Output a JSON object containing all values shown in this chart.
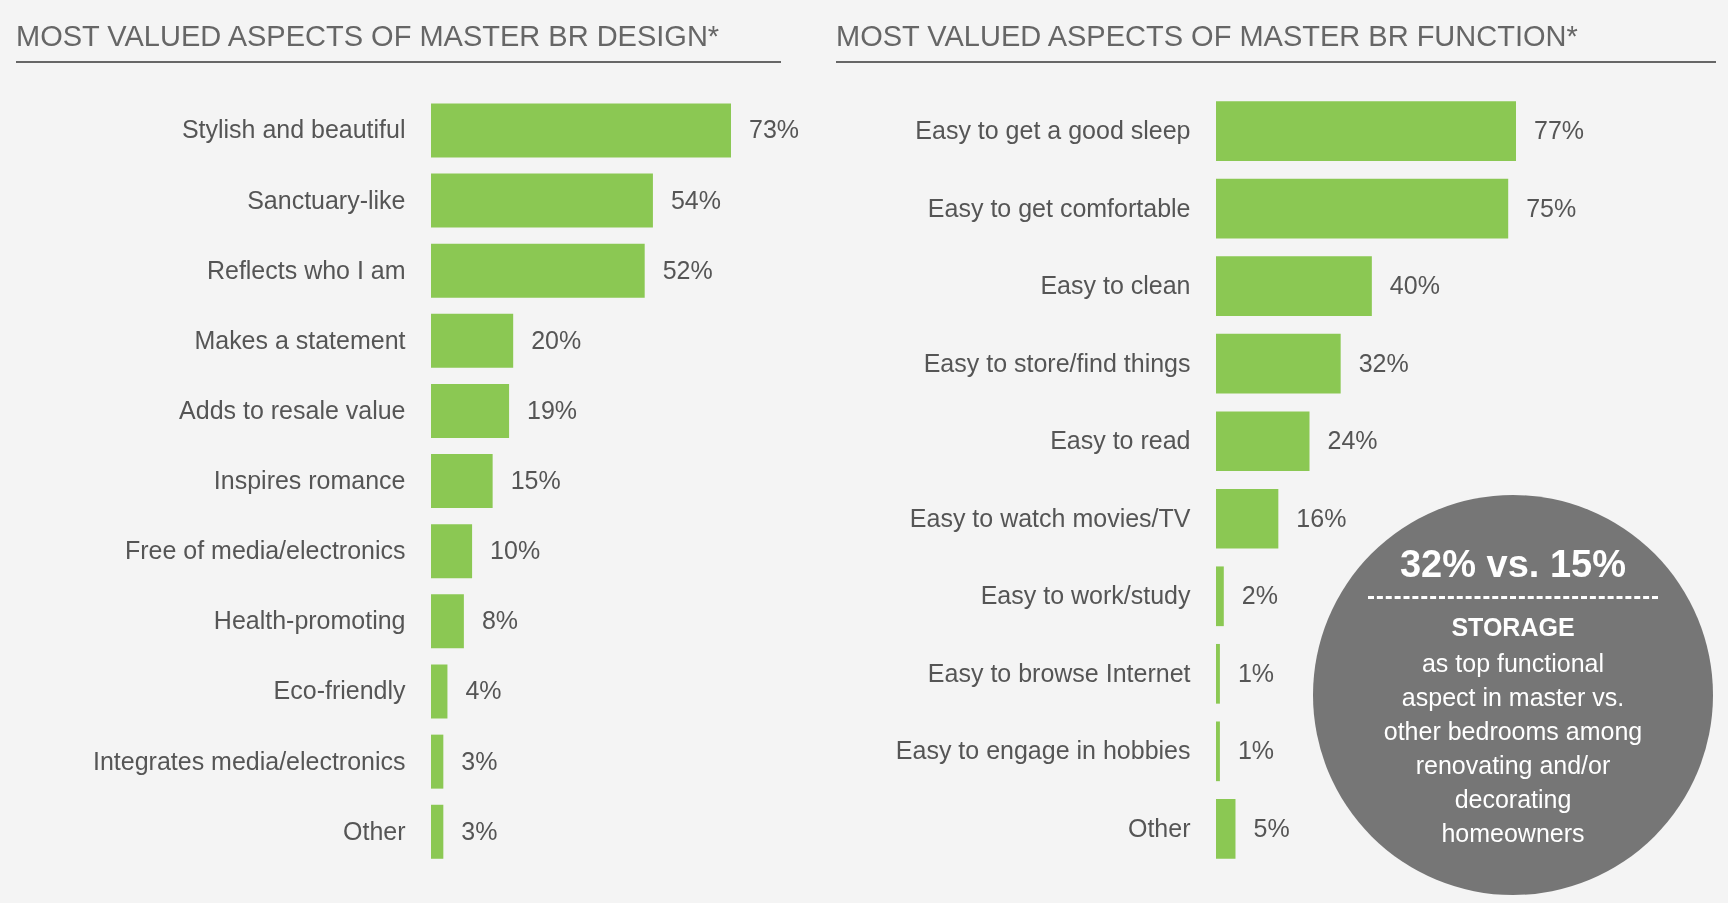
{
  "chart_data": [
    {
      "type": "bar",
      "orientation": "horizontal",
      "title": "MOST VALUED ASPECTS OF MASTER BR DESIGN*",
      "categories": [
        "Stylish and beautiful",
        "Sanctuary-like",
        "Reflects who I am",
        "Makes a statement",
        "Adds to resale value",
        "Inspires romance",
        "Free of media/electronics",
        "Health-promoting",
        "Eco-friendly",
        "Integrates media/electronics",
        "Other"
      ],
      "values": [
        73,
        54,
        52,
        20,
        19,
        15,
        10,
        8,
        4,
        3,
        3
      ],
      "value_labels": [
        "73%",
        "54%",
        "52%",
        "20%",
        "19%",
        "15%",
        "10%",
        "8%",
        "4%",
        "3%",
        "3%"
      ],
      "color": "#8bc853"
    },
    {
      "type": "bar",
      "orientation": "horizontal",
      "title": "MOST VALUED ASPECTS OF MASTER BR FUNCTION*",
      "categories": [
        "Easy to get a good sleep",
        "Easy to get comfortable",
        "Easy to clean",
        "Easy to store/find things",
        "Easy to read",
        "Easy to watch movies/TV",
        "Easy to work/study",
        "Easy to browse Internet",
        "Easy to engage in hobbies",
        "Other"
      ],
      "values": [
        77,
        75,
        40,
        32,
        24,
        16,
        2,
        1,
        1,
        5
      ],
      "value_labels": [
        "77%",
        "75%",
        "40%",
        "32%",
        "24%",
        "16%",
        "2%",
        "1%",
        "1%",
        "5%"
      ],
      "color": "#8bc853",
      "annotations": [
        "32% vs. 15%",
        "STORAGE",
        "as top functional aspect in master vs. other bedrooms among renovating and/or decorating homeowners"
      ]
    }
  ]
}
